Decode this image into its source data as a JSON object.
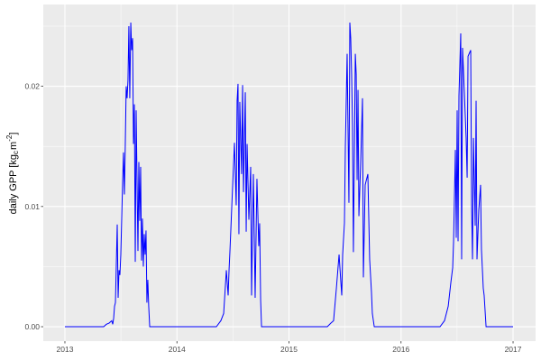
{
  "chart_data": {
    "type": "line",
    "title": "",
    "xlabel": "",
    "ylabel": {
      "main": "daily GPP [kg",
      "sub": "c",
      "mid": "m",
      "sup": "-2",
      "end": "]"
    },
    "xlim": [
      2012.807,
      2017.201
    ],
    "ylim": [
      -0.0012,
      0.0268
    ],
    "x_ticks": [
      2013,
      2014,
      2015,
      2016,
      2017
    ],
    "x_tick_labels": [
      "2013",
      "2014",
      "2015",
      "2016",
      "2017"
    ],
    "y_ticks": [
      0,
      0.01,
      0.02
    ],
    "y_tick_labels": [
      "0.00",
      "0.01",
      "0.02"
    ],
    "grid": true,
    "background": "#ebebeb",
    "series": [
      {
        "color": "#0000ff",
        "x": [
          2013.0,
          2013.346,
          2013.37,
          2013.394,
          2013.418,
          2013.427,
          2013.435,
          2013.443,
          2013.451,
          2013.467,
          2013.475,
          2013.483,
          2013.491,
          2013.499,
          2013.515,
          2013.523,
          2013.531,
          2013.539,
          2013.547,
          2013.555,
          2013.563,
          2013.571,
          2013.579,
          2013.588,
          2013.596,
          2013.604,
          2013.612,
          2013.62,
          2013.628,
          2013.636,
          2013.644,
          2013.652,
          2013.66,
          2013.668,
          2013.676,
          2013.684,
          2013.692,
          2013.7,
          2013.708,
          2013.716,
          2013.724,
          2013.732,
          2013.74,
          2013.748,
          2013.757,
          2014.352,
          2014.392,
          2014.417,
          2014.441,
          2014.457,
          2014.465,
          2014.473,
          2014.489,
          2014.513,
          2014.529,
          2014.537,
          2014.545,
          2014.553,
          2014.561,
          2014.577,
          2014.586,
          2014.594,
          2014.61,
          2014.618,
          2014.626,
          2014.642,
          2014.658,
          2014.666,
          2014.682,
          2014.698,
          2014.714,
          2014.73,
          2014.738,
          2014.747,
          2014.755,
          2015.342,
          2015.374,
          2015.398,
          2015.423,
          2015.447,
          2015.463,
          2015.471,
          2015.479,
          2015.495,
          2015.503,
          2015.519,
          2015.535,
          2015.543,
          2015.551,
          2015.559,
          2015.567,
          2015.575,
          2015.592,
          2015.6,
          2015.608,
          2015.616,
          2015.624,
          2015.64,
          2015.656,
          2015.664,
          2015.68,
          2015.704,
          2015.72,
          2015.736,
          2015.744,
          2015.761,
          2016.348,
          2016.388,
          2016.421,
          2016.445,
          2016.461,
          2016.469,
          2016.485,
          2016.493,
          2016.501,
          2016.509,
          2016.517,
          2016.533,
          2016.541,
          2016.549,
          2016.565,
          2016.581,
          2016.59,
          2016.598,
          2016.622,
          2016.63,
          2016.638,
          2016.646,
          2016.662,
          2016.67,
          2016.678,
          2016.694,
          2016.71,
          2016.714,
          2016.718,
          2016.734,
          2016.742,
          2016.759,
          2017.0
        ],
        "y": [
          0,
          0,
          0.0002,
          0.0003,
          0.0005,
          0.0002,
          0.0007,
          0.0017,
          0.002,
          0.0085,
          0.0024,
          0.0047,
          0.0043,
          0.006,
          0.012,
          0.0145,
          0.011,
          0.0152,
          0.02,
          0.019,
          0.0205,
          0.025,
          0.019,
          0.0253,
          0.023,
          0.024,
          0.0152,
          0.0185,
          0.0054,
          0.018,
          0.012,
          0.0063,
          0.0137,
          0.0088,
          0.0133,
          0.0055,
          0.009,
          0.005,
          0.0077,
          0.006,
          0.008,
          0.002,
          0.0039,
          0.0017,
          0,
          0,
          0.0005,
          0.0011,
          0.0047,
          0.0026,
          0.0047,
          0.0063,
          0.0099,
          0.0153,
          0.0101,
          0.0188,
          0.0202,
          0.0077,
          0.0187,
          0.0127,
          0.0201,
          0.0112,
          0.0195,
          0.0079,
          0.0152,
          0.0089,
          0.0133,
          0.0026,
          0.0127,
          0.0024,
          0.0123,
          0.0067,
          0.0086,
          0.0022,
          0,
          0,
          0.0003,
          0.0005,
          0.0032,
          0.006,
          0.0037,
          0.0026,
          0.006,
          0.0086,
          0.015,
          0.0227,
          0.0103,
          0.0253,
          0.024,
          0.021,
          0.0167,
          0.0062,
          0.0227,
          0.021,
          0.0122,
          0.0197,
          0.0092,
          0.0137,
          0.019,
          0.0041,
          0.0118,
          0.0127,
          0.0056,
          0.0029,
          0.0011,
          0,
          0,
          0.0005,
          0.0017,
          0.0037,
          0.0049,
          0.0071,
          0.0147,
          0.0074,
          0.018,
          0.0071,
          0.0192,
          0.0244,
          0.0056,
          0.0232,
          0.0195,
          0.0157,
          0.0124,
          0.0225,
          0.023,
          0.0099,
          0.0056,
          0.0157,
          0.0084,
          0.0188,
          0.0056,
          0.0097,
          0.0118,
          0.0087,
          0.0064,
          0.0032,
          0.0026,
          0,
          0
        ]
      }
    ]
  }
}
